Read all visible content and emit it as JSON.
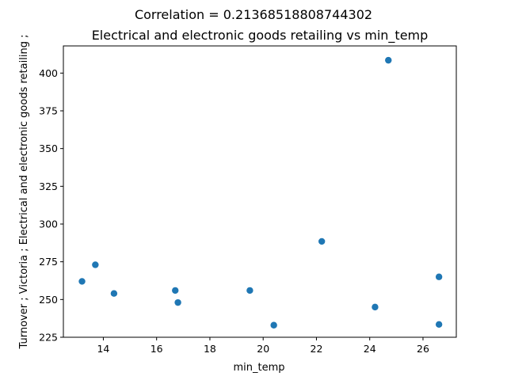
{
  "chart_data": {
    "type": "scatter",
    "title": "Correlation = 0.21368518808744302",
    "subtitle": "Electrical and electronic goods retailing vs min_temp",
    "xlabel": "min_temp",
    "ylabel": "Turnover ;  Victoria ;  Electrical and electronic goods retailing ;",
    "xlim": [
      12.5,
      27.25
    ],
    "ylim": [
      225,
      418
    ],
    "x_ticks": [
      14,
      16,
      18,
      20,
      22,
      24,
      26
    ],
    "y_ticks": [
      225,
      250,
      275,
      300,
      325,
      350,
      375,
      400
    ],
    "marker_color": "#1f77b4",
    "grid": false,
    "points": [
      {
        "x": 13.2,
        "y": 262
      },
      {
        "x": 13.7,
        "y": 273
      },
      {
        "x": 14.4,
        "y": 254
      },
      {
        "x": 16.7,
        "y": 256
      },
      {
        "x": 16.8,
        "y": 248
      },
      {
        "x": 19.5,
        "y": 256
      },
      {
        "x": 20.4,
        "y": 233
      },
      {
        "x": 22.2,
        "y": 288.5
      },
      {
        "x": 24.2,
        "y": 245
      },
      {
        "x": 24.7,
        "y": 408.5
      },
      {
        "x": 26.6,
        "y": 265
      },
      {
        "x": 26.6,
        "y": 233.5
      }
    ]
  }
}
